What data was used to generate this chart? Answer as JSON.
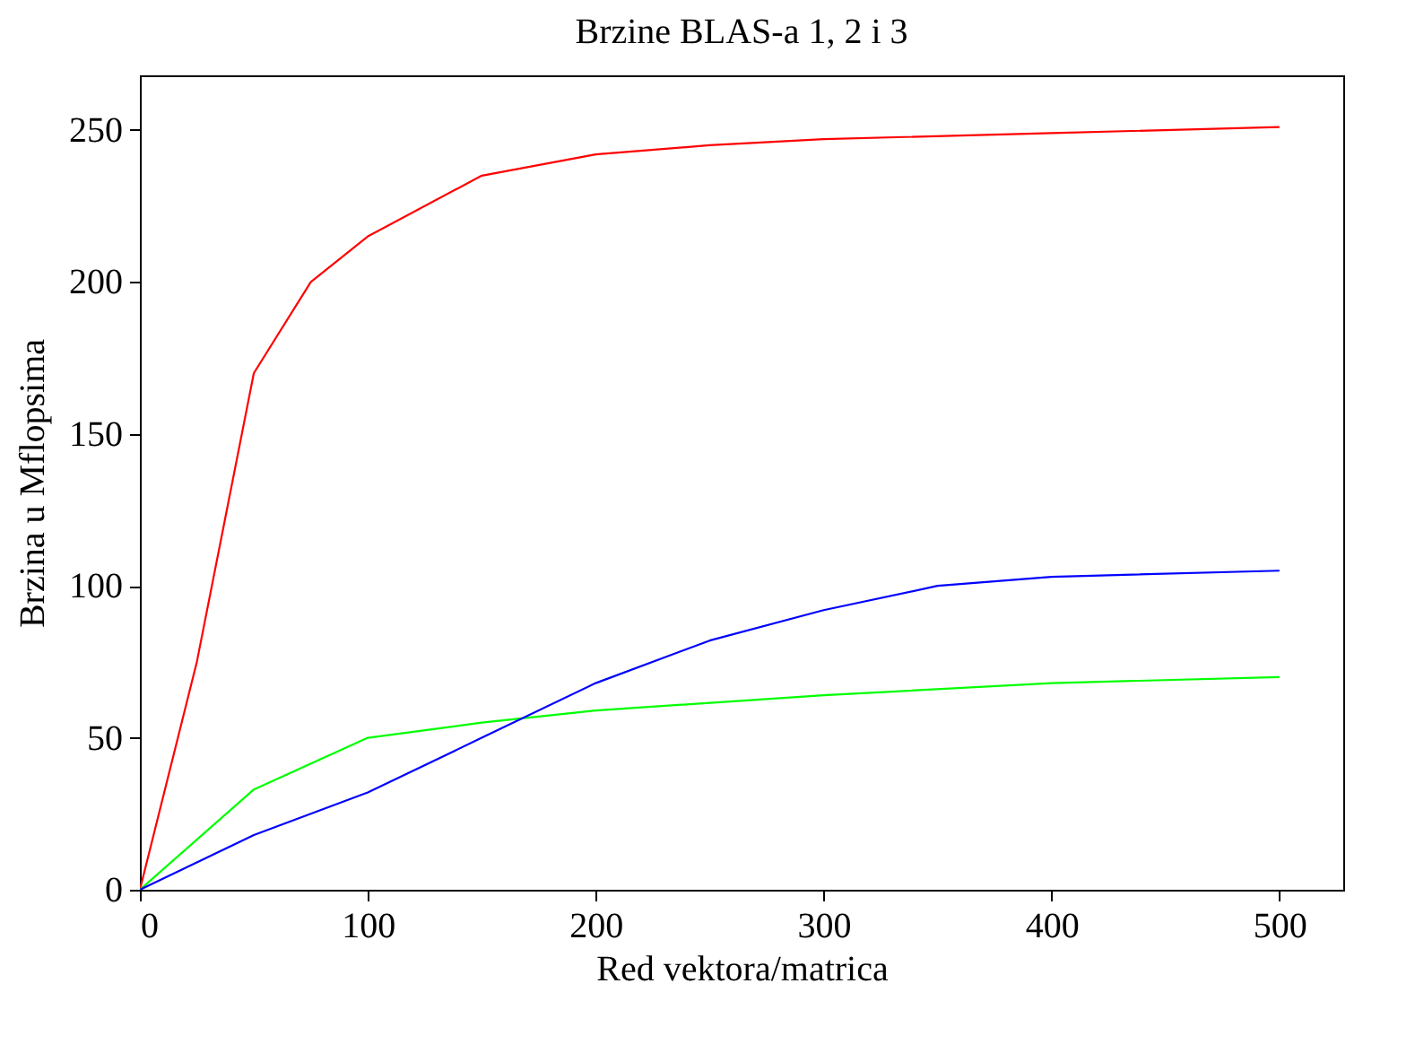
{
  "chart_data": {
    "type": "line",
    "title": "Brzine BLAS-a 1, 2 i 3",
    "xlabel": "Red vektora/matrica",
    "ylabel": "Brzina u Mflopsima",
    "xlim": [
      0,
      528
    ],
    "xticks": [
      0,
      100,
      200,
      300,
      400,
      500
    ],
    "ylim": [
      0,
      268
    ],
    "yticks": [
      0,
      50,
      100,
      150,
      200,
      250
    ],
    "grid": false,
    "legend": false,
    "series": [
      {
        "color": "#ff0000",
        "x": [
          0,
          25,
          50,
          75,
          100,
          150,
          200,
          250,
          300,
          400,
          500
        ],
        "values": [
          0,
          75,
          170,
          200,
          215,
          235,
          242,
          245,
          247,
          249,
          251
        ]
      },
      {
        "color": "#00ff00",
        "x": [
          0,
          50,
          100,
          150,
          200,
          300,
          400,
          500
        ],
        "values": [
          0,
          33,
          50,
          55,
          59,
          64,
          68,
          70
        ]
      },
      {
        "color": "#0000ff",
        "x": [
          0,
          50,
          100,
          150,
          200,
          250,
          300,
          350,
          400,
          500
        ],
        "values": [
          0,
          18,
          32,
          50,
          68,
          82,
          92,
          100,
          103,
          105
        ]
      }
    ]
  }
}
